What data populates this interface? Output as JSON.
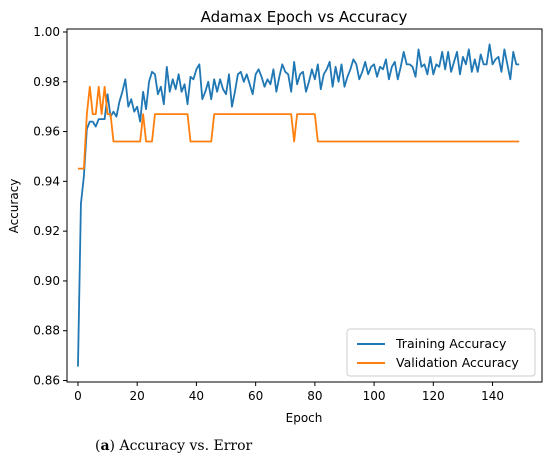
{
  "caption": {
    "tag": "a",
    "text": "Accuracy vs. Error"
  },
  "chart_data": {
    "type": "line",
    "title": "Adamax Epoch vs Accuracy",
    "xlabel": "Epoch",
    "ylabel": "Accuracy",
    "xlim": [
      -3.7,
      156.7
    ],
    "ylim": [
      0.8594,
      1.0012
    ],
    "xticks": [
      0,
      20,
      40,
      60,
      80,
      100,
      120,
      140
    ],
    "yticks": [
      0.86,
      0.88,
      0.9,
      0.92,
      0.94,
      0.96,
      0.98,
      1.0
    ],
    "ytick_labels": [
      "0.86",
      "0.88",
      "0.90",
      "0.92",
      "0.94",
      "0.96",
      "0.98",
      "1.00"
    ],
    "legend_position": "lower right",
    "grid": false,
    "series": [
      {
        "name": "Training Accuracy",
        "color": "#1f77b4",
        "x": [
          0,
          1,
          2,
          3,
          4,
          5,
          6,
          7,
          8,
          9,
          10,
          11,
          12,
          13,
          14,
          15,
          16,
          17,
          18,
          19,
          20,
          21,
          22,
          23,
          24,
          25,
          26,
          27,
          28,
          29,
          30,
          31,
          32,
          33,
          34,
          35,
          36,
          37,
          38,
          39,
          40,
          41,
          42,
          43,
          44,
          45,
          46,
          47,
          48,
          49,
          50,
          51,
          52,
          53,
          54,
          55,
          56,
          57,
          58,
          59,
          60,
          61,
          62,
          63,
          64,
          65,
          66,
          67,
          68,
          69,
          70,
          71,
          72,
          73,
          74,
          75,
          76,
          77,
          78,
          79,
          80,
          81,
          82,
          83,
          84,
          85,
          86,
          87,
          88,
          89,
          90,
          91,
          92,
          93,
          94,
          95,
          96,
          97,
          98,
          99,
          100,
          101,
          102,
          103,
          104,
          105,
          106,
          107,
          108,
          109,
          110,
          111,
          112,
          113,
          114,
          115,
          116,
          117,
          118,
          119,
          120,
          121,
          122,
          123,
          124,
          125,
          126,
          127,
          128,
          129,
          130,
          131,
          132,
          133,
          134,
          135,
          136,
          137,
          138,
          139,
          140,
          141,
          142,
          143,
          144,
          145,
          146,
          147,
          148,
          149
        ],
        "y": [
          0.8656,
          0.931,
          0.942,
          0.961,
          0.964,
          0.964,
          0.962,
          0.965,
          0.965,
          0.965,
          0.975,
          0.966,
          0.968,
          0.966,
          0.972,
          0.976,
          0.981,
          0.97,
          0.973,
          0.968,
          0.97,
          0.964,
          0.976,
          0.969,
          0.98,
          0.984,
          0.983,
          0.975,
          0.978,
          0.971,
          0.986,
          0.976,
          0.981,
          0.977,
          0.983,
          0.976,
          0.979,
          0.971,
          0.982,
          0.981,
          0.985,
          0.987,
          0.973,
          0.976,
          0.98,
          0.973,
          0.981,
          0.976,
          0.981,
          0.977,
          0.975,
          0.983,
          0.97,
          0.976,
          0.983,
          0.984,
          0.98,
          0.983,
          0.979,
          0.975,
          0.983,
          0.985,
          0.982,
          0.978,
          0.981,
          0.979,
          0.985,
          0.976,
          0.982,
          0.987,
          0.984,
          0.983,
          0.976,
          0.988,
          0.979,
          0.983,
          0.984,
          0.976,
          0.98,
          0.985,
          0.981,
          0.987,
          0.977,
          0.983,
          0.985,
          0.988,
          0.978,
          0.986,
          0.98,
          0.987,
          0.978,
          0.982,
          0.985,
          0.989,
          0.987,
          0.981,
          0.984,
          0.988,
          0.983,
          0.986,
          0.987,
          0.982,
          0.986,
          0.985,
          0.989,
          0.981,
          0.986,
          0.988,
          0.981,
          0.986,
          0.992,
          0.987,
          0.987,
          0.986,
          0.982,
          0.993,
          0.986,
          0.987,
          0.983,
          0.99,
          0.983,
          0.987,
          0.986,
          0.992,
          0.985,
          0.992,
          0.984,
          0.988,
          0.992,
          0.983,
          0.99,
          0.987,
          0.993,
          0.984,
          0.989,
          0.984,
          0.991,
          0.987,
          0.987,
          0.995,
          0.987,
          0.989,
          0.99,
          0.984,
          0.993,
          0.987,
          0.981,
          0.992,
          0.987,
          0.987
        ]
      },
      {
        "name": "Validation Accuracy",
        "color": "#ff7f0e",
        "x": [
          0,
          1,
          2,
          3,
          4,
          5,
          6,
          7,
          8,
          9,
          10,
          11,
          12,
          13,
          14,
          15,
          16,
          17,
          18,
          19,
          20,
          21,
          22,
          23,
          24,
          25,
          26,
          27,
          28,
          29,
          30,
          31,
          32,
          33,
          34,
          35,
          36,
          37,
          38,
          39,
          40,
          41,
          42,
          43,
          44,
          45,
          46,
          47,
          48,
          49,
          50,
          51,
          52,
          53,
          54,
          55,
          56,
          57,
          58,
          59,
          60,
          61,
          62,
          63,
          64,
          65,
          66,
          67,
          68,
          69,
          70,
          71,
          72,
          73,
          74,
          75,
          76,
          77,
          78,
          79,
          80,
          81,
          82,
          83,
          84,
          85,
          86,
          87,
          88,
          89,
          90,
          91,
          92,
          93,
          94,
          95,
          96,
          97,
          98,
          99,
          100,
          101,
          102,
          103,
          104,
          105,
          106,
          107,
          108,
          109,
          110,
          111,
          112,
          113,
          114,
          115,
          116,
          117,
          118,
          119,
          120,
          121,
          122,
          123,
          124,
          125,
          126,
          127,
          128,
          129,
          130,
          131,
          132,
          133,
          134,
          135,
          136,
          137,
          138,
          139,
          140,
          141,
          142,
          143,
          144,
          145,
          146,
          147,
          148,
          149
        ],
        "y": [
          0.9451,
          0.9451,
          0.9451,
          0.967,
          0.978,
          0.967,
          0.967,
          0.978,
          0.967,
          0.978,
          0.967,
          0.967,
          0.956,
          0.956,
          0.956,
          0.956,
          0.956,
          0.956,
          0.956,
          0.956,
          0.956,
          0.956,
          0.967,
          0.956,
          0.956,
          0.956,
          0.967,
          0.967,
          0.967,
          0.967,
          0.967,
          0.967,
          0.967,
          0.967,
          0.967,
          0.967,
          0.967,
          0.967,
          0.956,
          0.956,
          0.956,
          0.956,
          0.956,
          0.956,
          0.956,
          0.956,
          0.967,
          0.967,
          0.967,
          0.967,
          0.967,
          0.967,
          0.967,
          0.967,
          0.967,
          0.967,
          0.967,
          0.967,
          0.967,
          0.967,
          0.967,
          0.967,
          0.967,
          0.967,
          0.967,
          0.967,
          0.967,
          0.967,
          0.967,
          0.967,
          0.967,
          0.967,
          0.967,
          0.956,
          0.967,
          0.967,
          0.967,
          0.967,
          0.967,
          0.967,
          0.967,
          0.956,
          0.956,
          0.956,
          0.956,
          0.956,
          0.956,
          0.956,
          0.956,
          0.956,
          0.956,
          0.956,
          0.956,
          0.956,
          0.956,
          0.956,
          0.956,
          0.956,
          0.956,
          0.956,
          0.956,
          0.956,
          0.956,
          0.956,
          0.956,
          0.956,
          0.956,
          0.956,
          0.956,
          0.956,
          0.956,
          0.956,
          0.956,
          0.956,
          0.956,
          0.956,
          0.956,
          0.956,
          0.956,
          0.956,
          0.956,
          0.956,
          0.956,
          0.956,
          0.956,
          0.956,
          0.956,
          0.956,
          0.956,
          0.956,
          0.956,
          0.956,
          0.956,
          0.956,
          0.956,
          0.956,
          0.956,
          0.956,
          0.956,
          0.956,
          0.956,
          0.956,
          0.956,
          0.956,
          0.956,
          0.956,
          0.956,
          0.956,
          0.956,
          0.956
        ]
      }
    ]
  }
}
